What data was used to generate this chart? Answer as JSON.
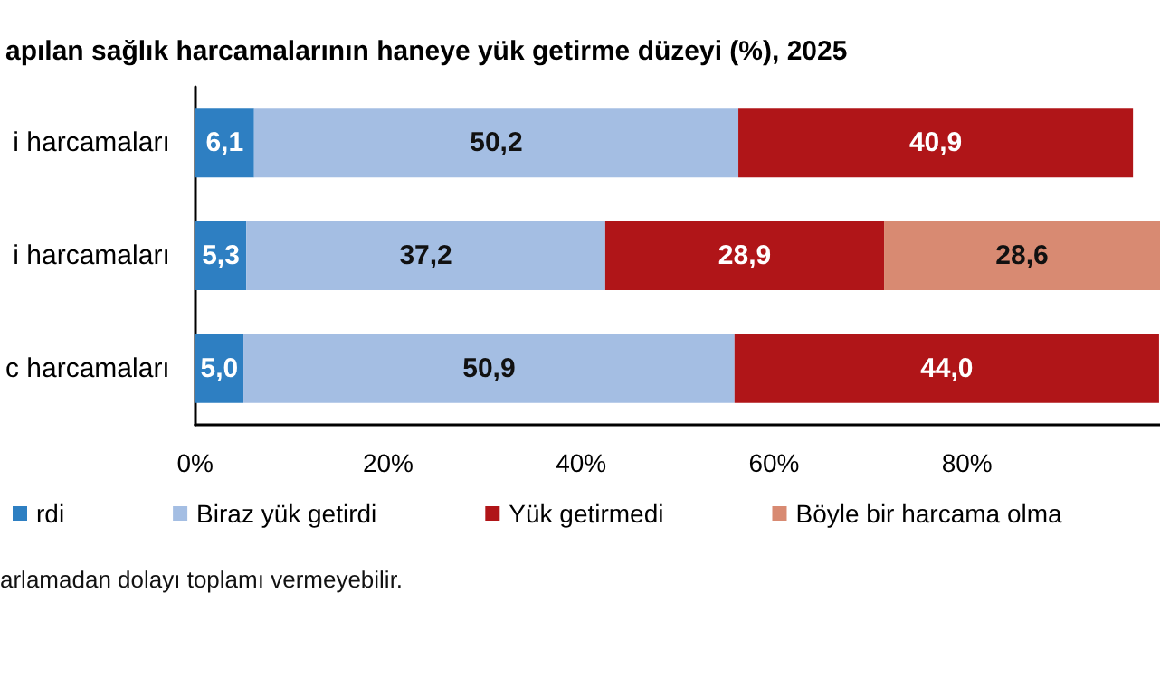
{
  "chart_data": {
    "type": "bar",
    "orientation": "horizontal",
    "stacked": true,
    "title": "apılan sağlık harcamalarının haneye yük getirme düzeyi (%), 2025",
    "categories": [
      "i harcamaları",
      "i harcamaları",
      "c harcamaları"
    ],
    "series": [
      {
        "name": "rdi",
        "color": "#2e7fc2",
        "values": [
          6.1,
          5.3,
          5.0
        ],
        "value_labels": [
          "6,1",
          "5,3",
          "5,0"
        ]
      },
      {
        "name": "Biraz yük getirdi",
        "color": "#a4bee3",
        "values": [
          50.2,
          37.2,
          50.9
        ],
        "value_labels": [
          "50,2",
          "37,2",
          "50,9"
        ]
      },
      {
        "name": "Yük getirmedi",
        "color": "#b01518",
        "values": [
          40.9,
          28.9,
          44.0
        ],
        "value_labels": [
          "40,9",
          "28,9",
          "44,0"
        ]
      },
      {
        "name": "Böyle bir harcama olma",
        "color": "#d88a72",
        "values": [
          null,
          28.6,
          null
        ],
        "value_labels": [
          null,
          "28,6",
          null
        ]
      }
    ],
    "xlim": [
      0,
      100
    ],
    "xticks": [
      {
        "value": 0,
        "label": "0%"
      },
      {
        "value": 20,
        "label": "20%"
      },
      {
        "value": 40,
        "label": "40%"
      },
      {
        "value": 60,
        "label": "60%"
      },
      {
        "value": 80,
        "label": "80%"
      }
    ],
    "grid": false,
    "legend": "bottom",
    "annotations": [
      "arlamadan dolayı toplamı vermeyebilir."
    ]
  }
}
